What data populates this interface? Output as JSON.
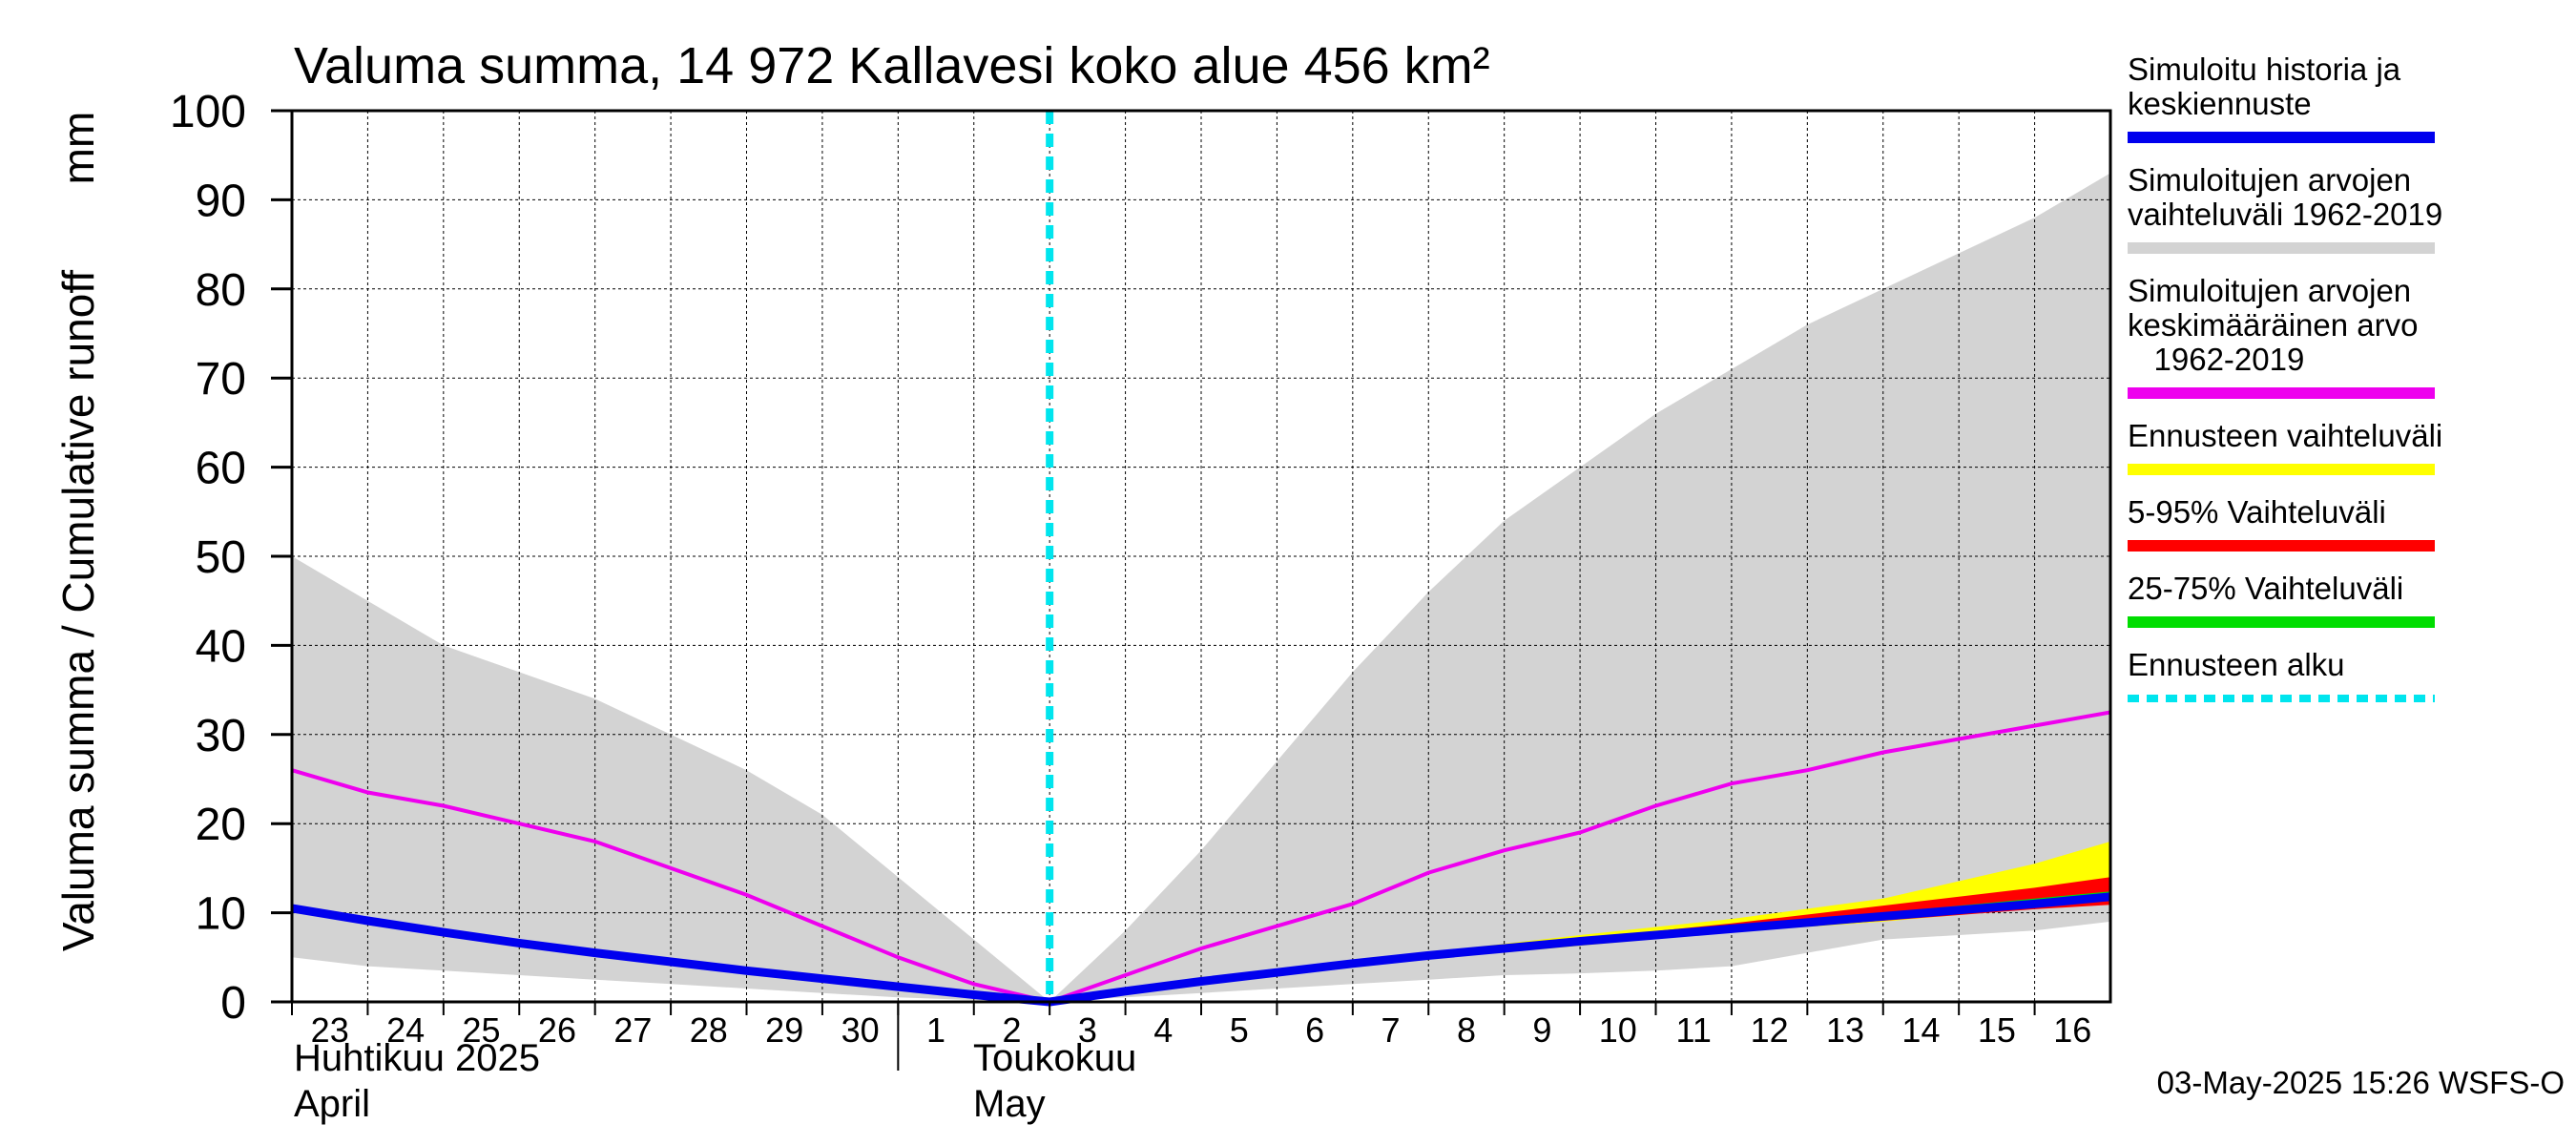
{
  "title": "Valuma summa, 14 972 Kallavesi koko alue 456 km²",
  "y_axis_label": "Valuma summa / Cumulative runoff",
  "y_unit": "mm",
  "months": [
    {
      "line1": "Huhtikuu  2025",
      "line2": "April"
    },
    {
      "line1": "Toukokuu",
      "line2": "May"
    }
  ],
  "footer": "03-May-2025 15:26 WSFS-O",
  "legend": [
    {
      "lines": [
        "Simuloitu historia ja",
        "keskiennuste"
      ],
      "color": "#0000ee",
      "style": "solid"
    },
    {
      "lines": [
        "Simuloitujen arvojen",
        "vaihteluväli 1962-2019"
      ],
      "color": "#d3d3d3",
      "style": "solid"
    },
    {
      "lines": [
        "Simuloitujen arvojen",
        "keskimääräinen arvo",
        "   1962-2019"
      ],
      "color": "#ee00ee",
      "style": "solid"
    },
    {
      "lines": [
        "Ennusteen vaihteluväli"
      ],
      "color": "#ffff00",
      "style": "solid"
    },
    {
      "lines": [
        "5-95% Vaihteluväli"
      ],
      "color": "#ff0000",
      "style": "solid"
    },
    {
      "lines": [
        "25-75% Vaihteluväli"
      ],
      "color": "#00dd00",
      "style": "solid"
    },
    {
      "lines": [
        "Ennusteen alku"
      ],
      "color": "#00e5ee",
      "style": "dashed"
    }
  ],
  "chart_data": {
    "type": "line",
    "title": "Valuma summa, 14 972 Kallavesi koko alue 456 km²",
    "ylabel": "Valuma summa / Cumulative runoff  mm",
    "ylim": [
      0,
      100
    ],
    "yticks": [
      0,
      10,
      20,
      30,
      40,
      50,
      60,
      70,
      80,
      90,
      100
    ],
    "grid": true,
    "x_start": "2025-04-23",
    "x_end": "2025-05-17",
    "x_tick_labels": [
      "23",
      "24",
      "25",
      "26",
      "27",
      "28",
      "29",
      "30",
      "1",
      "2",
      "3",
      "4",
      "5",
      "6",
      "7",
      "8",
      "9",
      "10",
      "11",
      "12",
      "13",
      "14",
      "15",
      "16"
    ],
    "forecast_start": "2025-05-03",
    "hist_range": {
      "x": [
        "2025-04-23",
        "2025-04-24",
        "2025-04-25",
        "2025-04-26",
        "2025-04-27",
        "2025-04-28",
        "2025-04-29",
        "2025-04-30",
        "2025-05-01",
        "2025-05-02",
        "2025-05-03",
        "2025-05-04",
        "2025-05-05",
        "2025-05-06",
        "2025-05-07",
        "2025-05-08",
        "2025-05-09",
        "2025-05-10",
        "2025-05-11",
        "2025-05-12",
        "2025-05-13",
        "2025-05-14",
        "2025-05-15",
        "2025-05-16",
        "2025-05-17"
      ],
      "low": [
        5,
        4,
        3.5,
        3,
        2.5,
        2,
        1.5,
        1,
        0.5,
        0.2,
        0,
        0.5,
        1,
        1.5,
        2,
        2.5,
        3,
        3.2,
        3.5,
        4,
        5.5,
        7,
        7.5,
        8,
        9
      ],
      "high": [
        50,
        45,
        40,
        37,
        34,
        30,
        26,
        21,
        14,
        7,
        0,
        8,
        17,
        27,
        37,
        46,
        54,
        60,
        66,
        71,
        76,
        80,
        84,
        88,
        93
      ]
    },
    "series": [
      {
        "name": "Simuloitu historia ja keskiennuste",
        "x": [
          "2025-04-23",
          "2025-04-24",
          "2025-04-25",
          "2025-04-26",
          "2025-04-27",
          "2025-04-28",
          "2025-04-29",
          "2025-04-30",
          "2025-05-01",
          "2025-05-02",
          "2025-05-03",
          "2025-05-04",
          "2025-05-05",
          "2025-05-06",
          "2025-05-07",
          "2025-05-08",
          "2025-05-09",
          "2025-05-10",
          "2025-05-11",
          "2025-05-12",
          "2025-05-13",
          "2025-05-14",
          "2025-05-15",
          "2025-05-16",
          "2025-05-17"
        ],
        "values": [
          10.5,
          9.1,
          7.8,
          6.6,
          5.5,
          4.5,
          3.5,
          2.6,
          1.7,
          0.8,
          0,
          1.2,
          2.3,
          3.3,
          4.3,
          5.2,
          6.0,
          6.8,
          7.5,
          8.2,
          8.9,
          9.6,
          10.3,
          11.0,
          11.8
        ]
      },
      {
        "name": "Simuloitujen arvojen keskimääräinen arvo 1962-2019",
        "x": [
          "2025-04-23",
          "2025-04-24",
          "2025-04-25",
          "2025-04-26",
          "2025-04-27",
          "2025-04-28",
          "2025-04-29",
          "2025-04-30",
          "2025-05-01",
          "2025-05-02",
          "2025-05-03",
          "2025-05-04",
          "2025-05-05",
          "2025-05-06",
          "2025-05-07",
          "2025-05-08",
          "2025-05-09",
          "2025-05-10",
          "2025-05-11",
          "2025-05-12",
          "2025-05-13",
          "2025-05-14",
          "2025-05-15",
          "2025-05-16",
          "2025-05-17"
        ],
        "values": [
          26,
          23.5,
          22,
          20,
          18,
          15,
          12,
          8.5,
          5,
          2,
          0,
          3,
          6,
          8.5,
          11,
          14.5,
          17,
          19,
          22,
          24.5,
          26,
          28,
          29.5,
          31,
          32.5
        ]
      }
    ],
    "forecast_bands": [
      {
        "name": "Ennusteen vaihteluväli",
        "x": [
          "2025-05-03",
          "2025-05-07",
          "2025-05-10",
          "2025-05-12",
          "2025-05-14",
          "2025-05-16",
          "2025-05-17"
        ],
        "low": [
          0,
          4.0,
          6.3,
          7.8,
          9.0,
          10.5,
          11.2
        ],
        "high": [
          0,
          4.6,
          7.5,
          9.3,
          11.6,
          15.5,
          18.0
        ]
      },
      {
        "name": "5-95% Vaihteluväli",
        "x": [
          "2025-05-03",
          "2025-05-07",
          "2025-05-10",
          "2025-05-12",
          "2025-05-14",
          "2025-05-16",
          "2025-05-17"
        ],
        "low": [
          0,
          4.1,
          6.4,
          7.9,
          9.1,
          10.4,
          10.9
        ],
        "high": [
          0,
          4.5,
          7.1,
          8.8,
          10.8,
          12.8,
          14.0
        ]
      },
      {
        "name": "25-75% Vaihteluväli",
        "x": [
          "2025-05-03",
          "2025-05-07",
          "2025-05-10",
          "2025-05-12",
          "2025-05-14",
          "2025-05-16",
          "2025-05-17"
        ],
        "low": [
          0,
          4.2,
          6.6,
          8.0,
          9.3,
          10.8,
          11.4
        ],
        "high": [
          0,
          4.4,
          6.9,
          8.5,
          10.0,
          11.6,
          12.4
        ]
      }
    ]
  }
}
